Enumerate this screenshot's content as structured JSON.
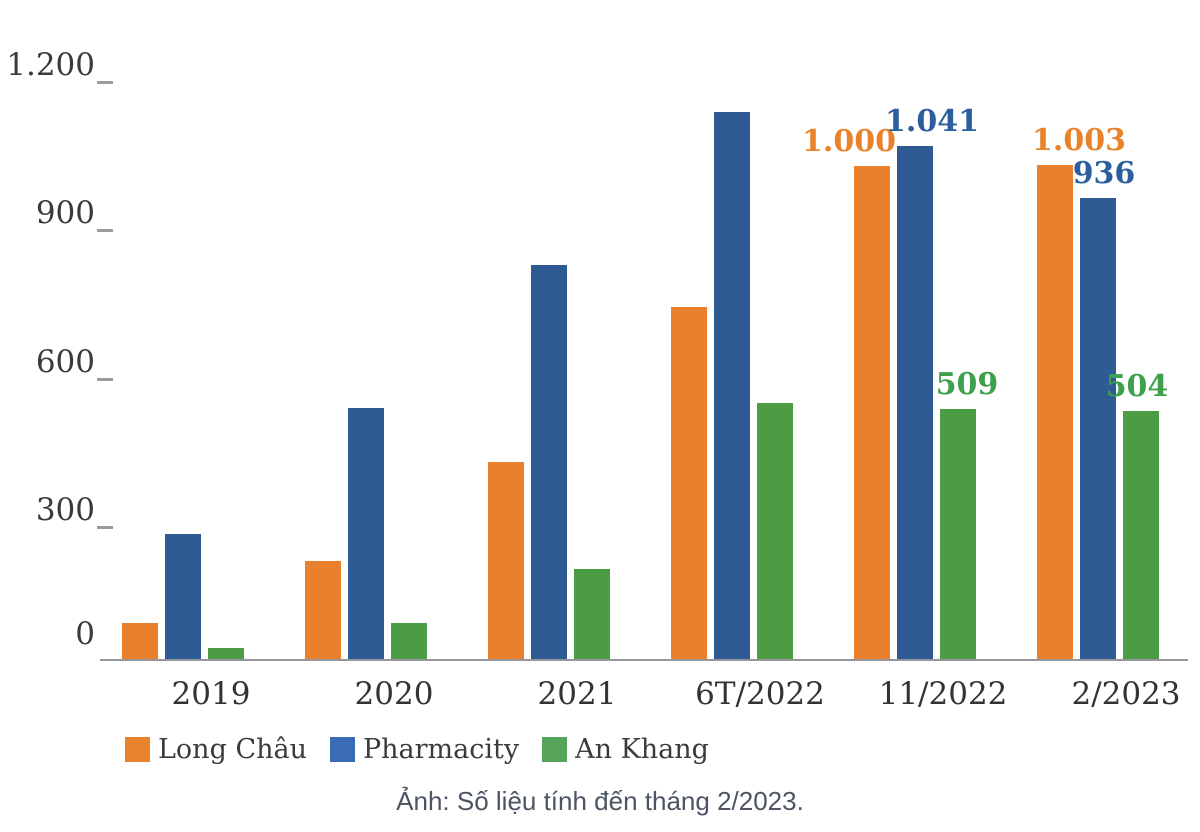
{
  "chart_data": {
    "type": "bar",
    "title": "",
    "xlabel": "",
    "ylabel": "",
    "categories": [
      "2019",
      "2020",
      "2021",
      "6T/2022",
      "11/2022",
      "2/2023"
    ],
    "series": [
      {
        "name": "Long Châu",
        "bar_color": "#E8802D",
        "label_color": "#E8832C",
        "legend_color": "#E8822B",
        "values": [
          75,
          200,
          400,
          715,
          1000,
          1003
        ],
        "value_labels": [
          null,
          null,
          null,
          null,
          "1.000",
          "1.003"
        ]
      },
      {
        "name": "Pharmacity",
        "bar_color": "#2F5B94",
        "label_color": "#2B5F9C",
        "legend_color": "#3A6BB5",
        "values": [
          255,
          510,
          800,
          1110,
          1041,
          936
        ],
        "value_labels": [
          null,
          null,
          null,
          null,
          "1.041",
          "936"
        ]
      },
      {
        "name": "An Khang",
        "bar_color": "#4C9B45",
        "label_color": "#3EA04C",
        "legend_color": "#55A45A",
        "values": [
          25,
          75,
          185,
          520,
          509,
          504
        ],
        "value_labels": [
          null,
          null,
          null,
          null,
          "509",
          "504"
        ]
      }
    ],
    "y_axis": {
      "range": [
        0,
        1200
      ],
      "ticks": [
        {
          "value": 1200,
          "label": "1.200"
        },
        {
          "value": 900,
          "label": "900"
        },
        {
          "value": 600,
          "label": "600"
        },
        {
          "value": 300,
          "label": "300"
        },
        {
          "value": 0,
          "label": "0"
        }
      ]
    },
    "grid": false,
    "legend_position": "bottom-left"
  },
  "caption": "Ảnh: Số liệu tính đến tháng 2/2023."
}
